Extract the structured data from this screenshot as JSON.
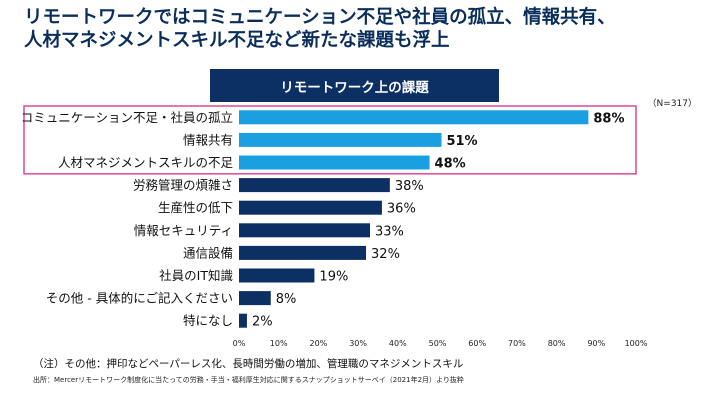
{
  "headline": {
    "line1": "リモートワークではコミュニケーション不足や社員の孤立、情報共有、",
    "line2": "人材マネジメントスキル不足など新たな課題も浮上"
  },
  "banner": "リモートワーク上の課題",
  "sample_size": "（N=317）",
  "footnote": "（注）その他：押印などペーパーレス化、長時間労働の増加、管理職のマネジメントスキル",
  "source": "出所：Mercerリモートワーク制度化に当たっての労務・手当・福利厚生対応に関するスナップショットサーベイ（2021年2月）より抜粋",
  "colors": {
    "highlight_bar": "#1a9fe0",
    "bar": "#0c3063",
    "highlight_box": "#e0559a",
    "headline": "#0a2e5c"
  },
  "chart_data": {
    "type": "bar",
    "orientation": "horizontal",
    "categories": [
      "コミュニケーション不足・社員の孤立",
      "情報共有",
      "人材マネジメントスキルの不足",
      "労務管理の煩雑さ",
      "生産性の低下",
      "情報セキュリティ",
      "通信設備",
      "社員のIT知識",
      "その他 - 具体的にご記入ください",
      "特になし"
    ],
    "values": [
      88,
      51,
      48,
      38,
      36,
      33,
      32,
      19,
      8,
      2
    ],
    "data_labels": [
      "88%",
      "51%",
      "48%",
      "38%",
      "36%",
      "33%",
      "32%",
      "19%",
      "8%",
      "2%"
    ],
    "highlighted": [
      true,
      true,
      true,
      false,
      false,
      false,
      false,
      false,
      false,
      false
    ],
    "x_ticks": [
      "0%",
      "10%",
      "20%",
      "30%",
      "40%",
      "50%",
      "60%",
      "70%",
      "80%",
      "90%",
      "100%"
    ],
    "xlim": [
      0,
      100
    ],
    "grid": false,
    "legend": "none"
  }
}
